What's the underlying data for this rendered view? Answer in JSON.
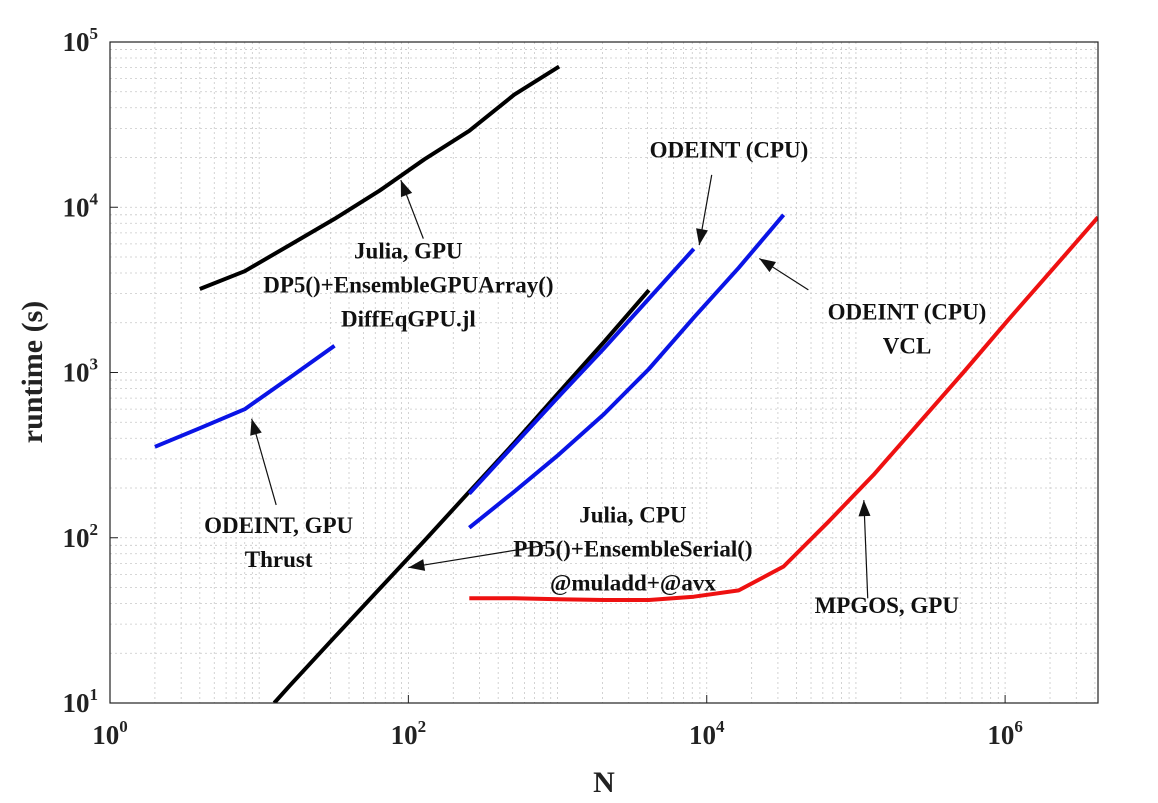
{
  "chart_data": {
    "type": "line",
    "title": "",
    "xlabel": "N",
    "ylabel": "runtime (s)",
    "xscale": "log",
    "yscale": "log",
    "xlim": [
      1,
      4194304
    ],
    "ylim": [
      10,
      100000
    ],
    "grid": true,
    "xticks": [
      {
        "base": "10",
        "exp": "0",
        "value": 1
      },
      {
        "base": "10",
        "exp": "2",
        "value": 100
      },
      {
        "base": "10",
        "exp": "4",
        "value": 10000
      },
      {
        "base": "10",
        "exp": "6",
        "value": 1000000
      }
    ],
    "yticks": [
      {
        "base": "10",
        "exp": "1",
        "value": 10
      },
      {
        "base": "10",
        "exp": "2",
        "value": 100
      },
      {
        "base": "10",
        "exp": "3",
        "value": 1000
      },
      {
        "base": "10",
        "exp": "4",
        "value": 10000
      },
      {
        "base": "10",
        "exp": "5",
        "value": 100000
      }
    ],
    "series": [
      {
        "name": "Julia, GPU DP5()+EnsembleGPUArray() DiffEqGPU.jl",
        "color": "#000000",
        "x": [
          4,
          8,
          16,
          32,
          64,
          128,
          256,
          512,
          1024
        ],
        "y": [
          3200,
          4100,
          5900,
          8500,
          12600,
          19500,
          29000,
          48000,
          71000
        ]
      },
      {
        "name": "ODEINT, GPU Thrust",
        "color": "#0a14e6",
        "x": [
          2,
          4,
          8,
          16,
          32
        ],
        "y": [
          355,
          460,
          600,
          930,
          1450
        ]
      },
      {
        "name": "Julia, CPU PD5()+EnsembleSerial() @muladd+@avx",
        "color": "#000000",
        "x": [
          12.6,
          16,
          32,
          64,
          128,
          256,
          512,
          1024,
          2048,
          4096
        ],
        "y": [
          10,
          12.7,
          25,
          49,
          96,
          190,
          375,
          760,
          1530,
          3150
        ]
      },
      {
        "name": "ODEINT (CPU)",
        "color": "#0a14e6",
        "x": [
          256,
          512,
          1024,
          2048,
          4096,
          8192
        ],
        "y": [
          185,
          365,
          720,
          1400,
          2800,
          5600
        ]
      },
      {
        "name": "ODEINT (CPU) VCL",
        "color": "#0a14e6",
        "x": [
          256,
          512,
          1024,
          2048,
          4096,
          8192,
          16384,
          32768
        ],
        "y": [
          115,
          190,
          320,
          560,
          1050,
          2150,
          4300,
          9000
        ]
      },
      {
        "name": "MPGOS, GPU",
        "color": "#ee1111",
        "x": [
          256,
          512,
          1024,
          2048,
          4096,
          8192,
          16384,
          32768,
          65536,
          131072,
          262144,
          524288,
          1048576,
          2097152,
          4194304
        ],
        "y": [
          43,
          43,
          42.5,
          42,
          42,
          44,
          48,
          67,
          125,
          240,
          490,
          1000,
          2080,
          4250,
          8700
        ]
      }
    ],
    "annotations": [
      {
        "lines": [
          "Julia, GPU",
          "DP5()+EnsembleGPUArray()",
          "DiffEqGPU.jl"
        ],
        "text_at": [
          100,
          4900
        ],
        "arrow_from": [
          126,
          6460
        ],
        "arrow_to": [
          89,
          14600
        ]
      },
      {
        "lines": [
          "ODEINT (CPU)"
        ],
        "text_at": [
          14100,
          20000
        ],
        "arrow_from": [
          10800,
          15700
        ],
        "arrow_to": [
          8900,
          5900
        ]
      },
      {
        "lines": [
          "ODEINT (CPU)",
          "VCL"
        ],
        "text_at": [
          220000,
          2100
        ],
        "arrow_from": [
          48000,
          3160
        ],
        "arrow_to": [
          22500,
          4900
        ]
      },
      {
        "lines": [
          "ODEINT, GPU",
          "Thrust"
        ],
        "text_at": [
          13.5,
          107
        ],
        "arrow_from": [
          13,
          158
        ],
        "arrow_to": [
          8.9,
          525
        ]
      },
      {
        "lines": [
          "Julia, CPU",
          "PD5()+EnsembleSerial()",
          "@muladd+@avx"
        ],
        "text_at": [
          3200,
          124
        ],
        "arrow_from": [
          830,
          90
        ],
        "arrow_to": [
          100,
          66
        ]
      },
      {
        "lines": [
          "MPGOS, GPU"
        ],
        "text_at": [
          161000,
          35
        ],
        "arrow_from": [
          120000,
          43
        ],
        "arrow_to": [
          113000,
          169
        ]
      }
    ]
  }
}
